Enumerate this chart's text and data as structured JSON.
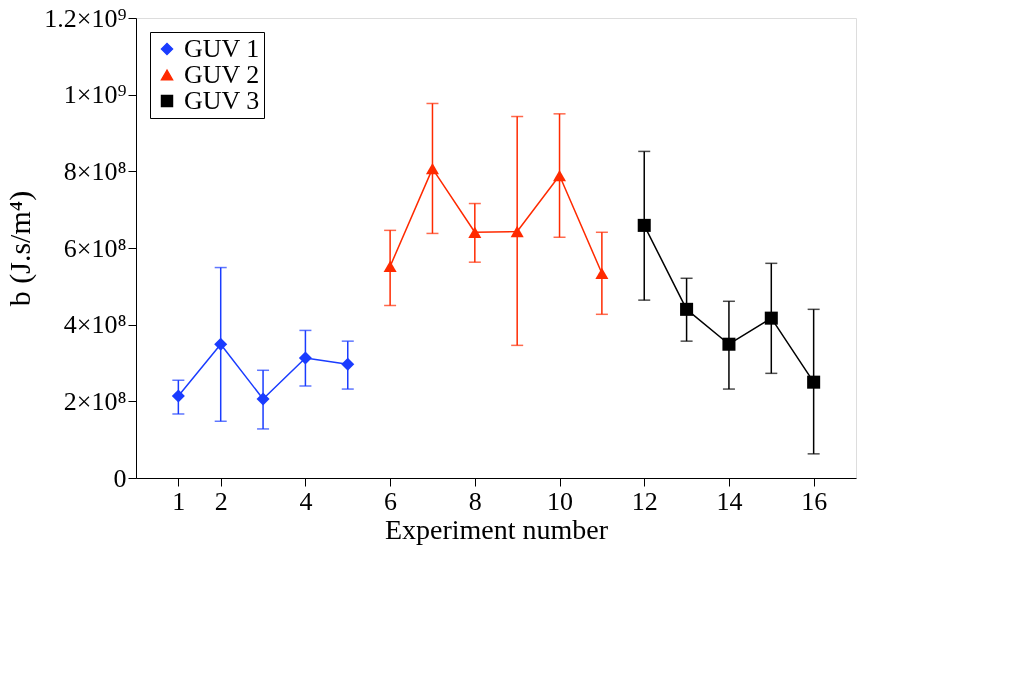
{
  "chart_data": {
    "type": "line",
    "xlabel": "Experiment number",
    "ylabel": "b (J.s/m⁴)",
    "xlim": [
      0,
      17
    ],
    "xticks": [
      1,
      2,
      4,
      6,
      8,
      10,
      12,
      14,
      16
    ],
    "ylim": [
      0,
      1200000000
    ],
    "yticks": [
      {
        "value": 0,
        "label": "0"
      },
      {
        "value": 200000000,
        "label": "2×10⁸"
      },
      {
        "value": 400000000,
        "label": "4×10⁸"
      },
      {
        "value": 600000000,
        "label": "6×10⁸"
      },
      {
        "value": 800000000,
        "label": "8×10⁸"
      },
      {
        "value": 1000000000,
        "label": "1×10⁹"
      },
      {
        "value": 1200000000,
        "label": "1.2×10⁹"
      }
    ],
    "grid": false,
    "legend": "top left",
    "line_style": "solid",
    "series": [
      {
        "name": "GUV 1",
        "color": "#1a3cff",
        "marker": "diamond",
        "x": [
          1,
          2,
          3,
          4,
          5
        ],
        "values": [
          214000000,
          349000000,
          206000000,
          313000000,
          297000000
        ],
        "errors": [
          [
            167000000,
            255000000
          ],
          [
            148000000,
            549000000
          ],
          [
            128000000,
            281000000
          ],
          [
            240000000,
            385000000
          ],
          [
            232000000,
            357000000
          ]
        ]
      },
      {
        "name": "GUV 2",
        "color": "#ff2a00",
        "marker": "triangle",
        "x": [
          6,
          7,
          8,
          9,
          10,
          11
        ],
        "values": [
          552000000,
          807000000,
          641000000,
          643000000,
          789000000,
          534000000
        ],
        "errors": [
          [
            450000000,
            646000000
          ],
          [
            638000000,
            977000000
          ],
          [
            563000000,
            716000000
          ],
          [
            346000000,
            943000000
          ],
          [
            628000000,
            950000000
          ],
          [
            427000000,
            641000000
          ]
        ]
      },
      {
        "name": "GUV 3",
        "color": "#000000",
        "marker": "square",
        "x": [
          12,
          13,
          14,
          15,
          16
        ],
        "values": [
          659000000,
          440000000,
          349000000,
          417000000,
          250000000
        ],
        "errors": [
          [
            464000000,
            852000000
          ],
          [
            357000000,
            521000000
          ],
          [
            232000000,
            461000000
          ],
          [
            273000000,
            560000000
          ],
          [
            63000000,
            440000000
          ]
        ]
      }
    ]
  }
}
